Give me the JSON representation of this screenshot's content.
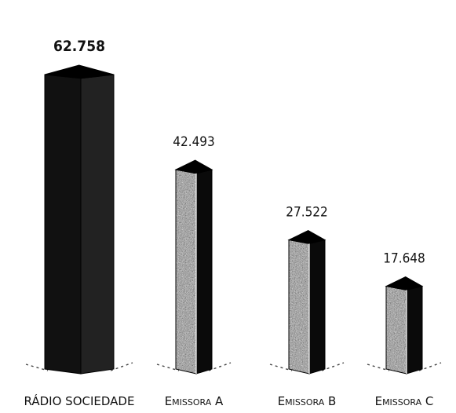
{
  "chart_data": {
    "type": "bar",
    "categories": [
      "RÁDIO SOCIEDADE",
      "Emissora A",
      "Emissora B",
      "Emissora C"
    ],
    "values": [
      62758,
      42493,
      27522,
      17648
    ],
    "value_labels": [
      "62.758",
      "42.493",
      "27.522",
      "17.648"
    ],
    "title": "",
    "xlabel": "",
    "ylabel": "",
    "ylim": [
      0,
      70000
    ],
    "grid": false,
    "legend": "none",
    "style": "3d-columns",
    "highlight_index": 0,
    "colors": {
      "highlight_front": "#111111",
      "highlight_side": "#222222",
      "highlight_top": "#000000",
      "textured_front": "#8a8a8a",
      "textured_side": "#0a0a0a",
      "textured_top": "#000000",
      "shadow": "#444444"
    }
  }
}
